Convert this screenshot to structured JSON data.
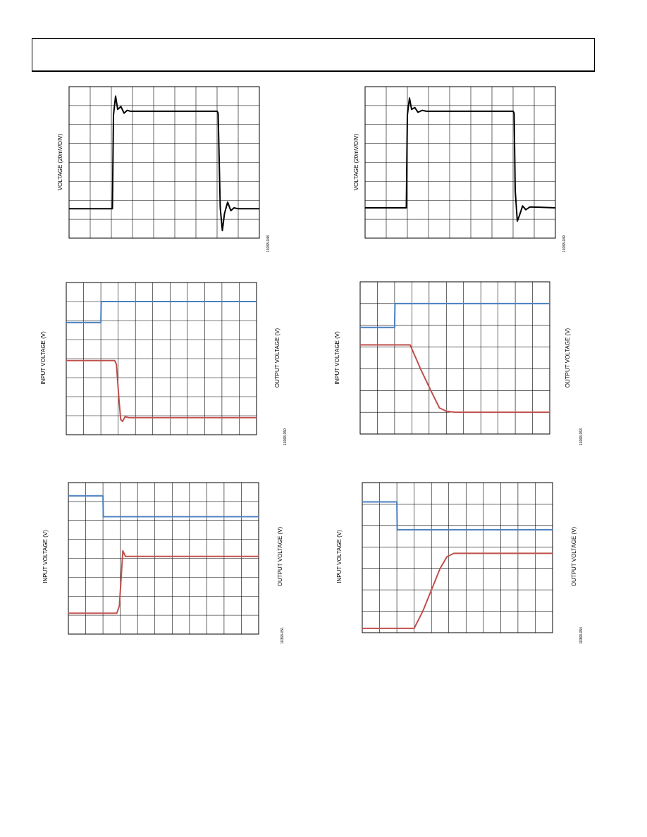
{
  "header": {
    "title": ""
  },
  "colors": {
    "input": "#4a7fc1",
    "output": "#c0504d",
    "single": "#000000",
    "grid": "#000000"
  },
  "chart_data": [
    {
      "id": "plot-1",
      "type": "line",
      "grid": true,
      "grid_divisions": [
        9,
        8
      ],
      "ylabel": "VOLTAGE (20mV/DIV)",
      "fig_id": "10368-048",
      "series": [
        {
          "name": "",
          "color": "#000000",
          "points": [
            [
              0,
              1.55
            ],
            [
              2.05,
              1.55
            ],
            [
              2.1,
              6.5
            ],
            [
              2.2,
              7.5
            ],
            [
              2.3,
              6.8
            ],
            [
              2.45,
              6.95
            ],
            [
              2.6,
              6.6
            ],
            [
              2.75,
              6.75
            ],
            [
              2.9,
              6.7
            ],
            [
              3.2,
              6.7
            ],
            [
              7,
              6.7
            ],
            [
              7.05,
              6.6
            ],
            [
              7.15,
              1.6
            ],
            [
              7.25,
              0.4
            ],
            [
              7.35,
              1.3
            ],
            [
              7.5,
              1.9
            ],
            [
              7.65,
              1.45
            ],
            [
              7.8,
              1.6
            ],
            [
              8,
              1.55
            ],
            [
              9,
              1.55
            ]
          ]
        }
      ]
    },
    {
      "id": "plot-2",
      "type": "line",
      "grid": true,
      "grid_divisions": [
        9,
        8
      ],
      "ylabel": "VOLTAGE (20mV/DIV)",
      "fig_id": "10368-049",
      "series": [
        {
          "name": "",
          "color": "#000000",
          "points": [
            [
              0,
              1.6
            ],
            [
              1.95,
              1.6
            ],
            [
              2,
              6.5
            ],
            [
              2.1,
              7.4
            ],
            [
              2.2,
              6.8
            ],
            [
              2.35,
              6.9
            ],
            [
              2.5,
              6.65
            ],
            [
              2.7,
              6.75
            ],
            [
              2.9,
              6.7
            ],
            [
              7,
              6.7
            ],
            [
              7.05,
              6.6
            ],
            [
              7.1,
              2.5
            ],
            [
              7.2,
              0.9
            ],
            [
              7.3,
              1.2
            ],
            [
              7.45,
              1.7
            ],
            [
              7.6,
              1.5
            ],
            [
              7.8,
              1.65
            ],
            [
              9,
              1.6
            ]
          ]
        }
      ]
    },
    {
      "id": "plot-3",
      "type": "line",
      "grid": true,
      "grid_divisions": [
        11,
        8
      ],
      "y_left_label": "INPUT VOLTAGE (V)",
      "y_right_label": "OUTPUT VOLTAGE (V)",
      "fig_id": "10368-050",
      "series": [
        {
          "name": "",
          "color": "#4a7fc1",
          "points": [
            [
              0,
              5.9
            ],
            [
              2,
              5.9
            ],
            [
              2.02,
              7
            ],
            [
              11,
              7
            ]
          ]
        },
        {
          "name": "",
          "color": "#c0504d",
          "points": [
            [
              0,
              3.9
            ],
            [
              2.8,
              3.9
            ],
            [
              2.9,
              3.7
            ],
            [
              3.05,
              1.8
            ],
            [
              3.15,
              0.8
            ],
            [
              3.25,
              0.7
            ],
            [
              3.4,
              0.95
            ],
            [
              3.6,
              0.9
            ],
            [
              11,
              0.9
            ]
          ]
        }
      ]
    },
    {
      "id": "plot-4",
      "type": "line",
      "grid": true,
      "grid_divisions": [
        11,
        7
      ],
      "y_left_label": "INPUT VOLTAGE (V)",
      "y_right_label": "OUTPUT VOLTAGE (V)",
      "fig_id": "10368-053",
      "series": [
        {
          "name": "",
          "color": "#4a7fc1",
          "points": [
            [
              0,
              4.9
            ],
            [
              2,
              4.9
            ],
            [
              2.02,
              6
            ],
            [
              11,
              6
            ]
          ]
        },
        {
          "name": "",
          "color": "#c0504d",
          "points": [
            [
              0,
              4.1
            ],
            [
              2.9,
              4.1
            ],
            [
              3.5,
              3
            ],
            [
              4.1,
              2
            ],
            [
              4.6,
              1.2
            ],
            [
              5.0,
              1.05
            ],
            [
              5.5,
              1.0
            ],
            [
              11,
              1.0
            ]
          ]
        }
      ]
    },
    {
      "id": "plot-5",
      "type": "line",
      "grid": true,
      "grid_divisions": [
        11,
        8
      ],
      "y_left_label": "INPUT VOLTAGE (V)",
      "y_right_label": "OUTPUT VOLTAGE (V)",
      "fig_id": "10368-051",
      "series": [
        {
          "name": "",
          "color": "#4a7fc1",
          "points": [
            [
              0,
              7.3
            ],
            [
              2,
              7.3
            ],
            [
              2.02,
              6.2
            ],
            [
              11,
              6.2
            ]
          ]
        },
        {
          "name": "",
          "color": "#c0504d",
          "points": [
            [
              0,
              1.1
            ],
            [
              2.8,
              1.1
            ],
            [
              2.95,
              1.5
            ],
            [
              3.15,
              4.4
            ],
            [
              3.3,
              4.1
            ],
            [
              11,
              4.1
            ]
          ]
        }
      ]
    },
    {
      "id": "plot-6",
      "type": "line",
      "grid": true,
      "grid_divisions": [
        11,
        7
      ],
      "y_left_label": "INPUT VOLTAGE (V)",
      "y_right_label": "OUTPUT VOLTAGE (V)",
      "fig_id": "10368-054",
      "series": [
        {
          "name": "",
          "color": "#4a7fc1",
          "points": [
            [
              0,
              6.1
            ],
            [
              2,
              6.1
            ],
            [
              2.02,
              4.8
            ],
            [
              11,
              4.8
            ]
          ]
        },
        {
          "name": "",
          "color": "#c0504d",
          "points": [
            [
              0,
              0.2
            ],
            [
              3,
              0.2
            ],
            [
              3.5,
              1.0
            ],
            [
              4.0,
              2.0
            ],
            [
              4.5,
              3.0
            ],
            [
              4.9,
              3.55
            ],
            [
              5.3,
              3.7
            ],
            [
              11,
              3.7
            ]
          ]
        }
      ]
    }
  ]
}
